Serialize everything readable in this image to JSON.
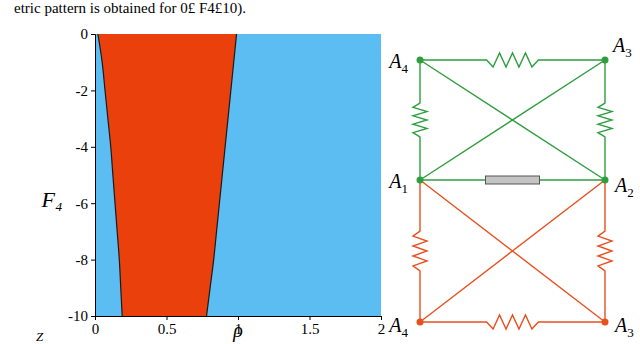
{
  "caption": "etric pattern is obtained for 0£ F4£10).",
  "footer_text": "Z",
  "chart_data": {
    "type": "region",
    "xlabel": "ρ",
    "ylabel": "F₄",
    "xlim": [
      0,
      2
    ],
    "ylim": [
      -10,
      0
    ],
    "xticks": [
      0,
      0.5,
      1,
      1.5,
      2
    ],
    "yticks": [
      0,
      -2,
      -4,
      -6,
      -8,
      -10
    ],
    "regions": [
      {
        "color": "#5cbdf3",
        "y": [
          0,
          -10
        ],
        "x_left": [
          0,
          0
        ],
        "x_right": [
          2,
          2
        ]
      },
      {
        "color": "#e9400c",
        "y": [
          0,
          -1,
          -2,
          -3,
          -4,
          -5,
          -6,
          -7,
          -8,
          -9,
          -10
        ],
        "x_left": [
          0.02,
          0.05,
          0.07,
          0.09,
          0.11,
          0.125,
          0.14,
          0.155,
          0.17,
          0.18,
          0.19
        ],
        "x_right": [
          0.99,
          0.97,
          0.95,
          0.93,
          0.91,
          0.89,
          0.87,
          0.85,
          0.83,
          0.805,
          0.78
        ]
      }
    ]
  },
  "diagram": {
    "nodes": [
      {
        "label": "A",
        "sub": "4",
        "color": "#2e9e3e"
      },
      {
        "label": "A",
        "sub": "3",
        "color": "#2e9e3e"
      },
      {
        "label": "A",
        "sub": "1",
        "color": "#2e9e3e"
      },
      {
        "label": "A",
        "sub": "2",
        "color": "#2e9e3e"
      },
      {
        "label": "A",
        "sub": "4",
        "color": "#e8501e"
      },
      {
        "label": "A",
        "sub": "3",
        "color": "#e8501e"
      }
    ],
    "edges": [
      {
        "from": 0,
        "to": 1,
        "kind": "resistor",
        "color": "#2e9e3e"
      },
      {
        "from": 0,
        "to": 2,
        "kind": "resistor",
        "color": "#2e9e3e"
      },
      {
        "from": 1,
        "to": 3,
        "kind": "resistor",
        "color": "#2e9e3e"
      },
      {
        "from": 0,
        "to": 3,
        "kind": "wire",
        "color": "#2e9e3e"
      },
      {
        "from": 1,
        "to": 2,
        "kind": "wire",
        "color": "#2e9e3e"
      },
      {
        "from": 2,
        "to": 3,
        "kind": "element",
        "color": "#2e9e3e"
      },
      {
        "from": 2,
        "to": 4,
        "kind": "resistor",
        "color": "#e8501e"
      },
      {
        "from": 3,
        "to": 5,
        "kind": "resistor",
        "color": "#e8501e"
      },
      {
        "from": 4,
        "to": 5,
        "kind": "resistor",
        "color": "#e8501e"
      },
      {
        "from": 2,
        "to": 5,
        "kind": "wire",
        "color": "#e8501e"
      },
      {
        "from": 3,
        "to": 4,
        "kind": "wire",
        "color": "#e8501e"
      }
    ]
  }
}
